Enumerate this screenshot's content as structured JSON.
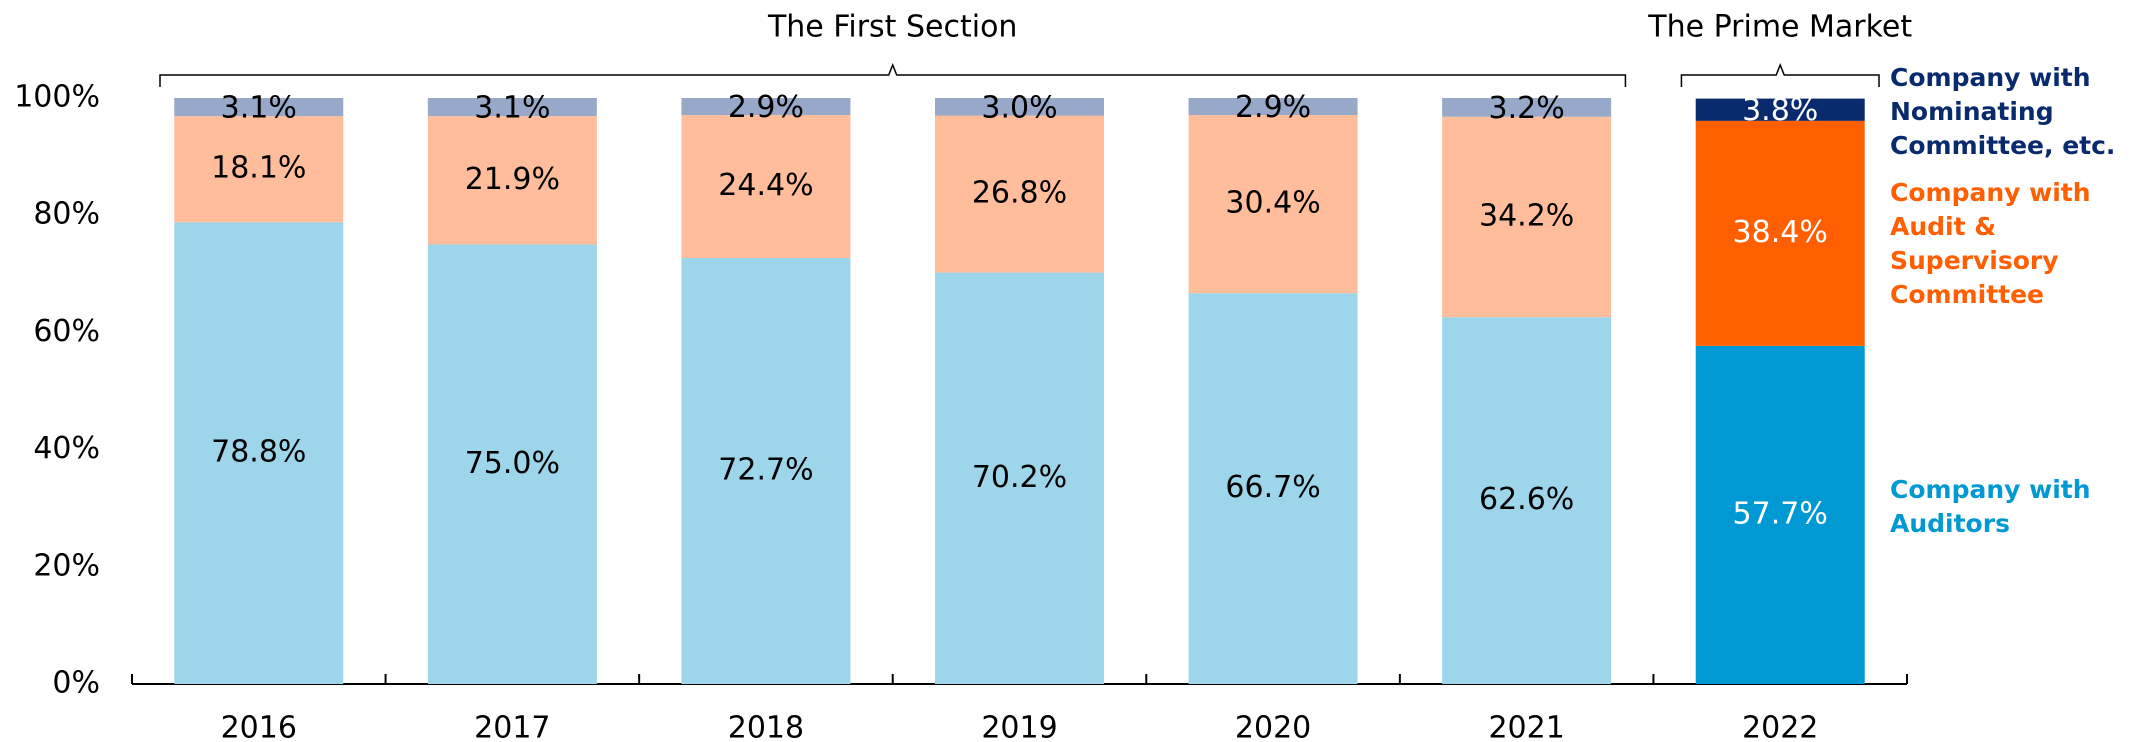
{
  "chart_data": {
    "type": "stacked_bar",
    "categories": [
      "2016",
      "2017",
      "2018",
      "2019",
      "2020",
      "2021",
      "2022"
    ],
    "series": [
      {
        "name": "Company with Auditors",
        "colors": [
          "#9dd5ea",
          "#9dd5ea",
          "#9dd5ea",
          "#9dd5ea",
          "#9dd5ea",
          "#9dd5ea",
          "#0099d3"
        ],
        "values": [
          78.8,
          75.0,
          72.7,
          70.2,
          66.7,
          62.6,
          57.7
        ],
        "value_labels": [
          "78.8%",
          "75.0%",
          "72.7%",
          "70.2%",
          "66.7%",
          "62.6%",
          "57.7%"
        ]
      },
      {
        "name": "Company with Audit & Supervisory Committee",
        "colors": [
          "#ffbd9b",
          "#ffbd9b",
          "#ffbd9b",
          "#ffbd9b",
          "#ffbd9b",
          "#ffbd9b",
          "#ff5f00"
        ],
        "values": [
          18.1,
          21.9,
          24.4,
          26.8,
          30.4,
          34.2,
          38.4
        ],
        "value_labels": [
          "18.1%",
          "21.9%",
          "24.4%",
          "26.8%",
          "30.4%",
          "34.2%",
          "38.4%"
        ]
      },
      {
        "name": "Company with Nominating Committee, etc.",
        "colors": [
          "#97a8c8",
          "#97a8c8",
          "#97a8c8",
          "#97a8c8",
          "#97a8c8",
          "#97a8c8",
          "#0a2a6e"
        ],
        "values": [
          3.1,
          3.1,
          2.9,
          3.0,
          2.9,
          3.2,
          3.8
        ],
        "value_labels": [
          "3.1%",
          "3.1%",
          "2.9%",
          "3.0%",
          "2.9%",
          "3.2%",
          "3.8%"
        ]
      }
    ],
    "value_label_colors": [
      "#000000",
      "#000000",
      "#000000",
      "#000000",
      "#000000",
      "#000000",
      "#ffffff"
    ],
    "groups": [
      {
        "label": "The First Section",
        "start": 0,
        "end": 5
      },
      {
        "label": "The Prime Market",
        "start": 6,
        "end": 6
      }
    ],
    "ylim": [
      0,
      100
    ],
    "yticks": [
      {
        "value": 0,
        "label": "0%"
      },
      {
        "value": 20,
        "label": "20%"
      },
      {
        "value": 40,
        "label": "40%"
      },
      {
        "value": 60,
        "label": "60%"
      },
      {
        "value": 80,
        "label": "80%"
      },
      {
        "value": 100,
        "label": "100%"
      }
    ],
    "legend": "right"
  }
}
